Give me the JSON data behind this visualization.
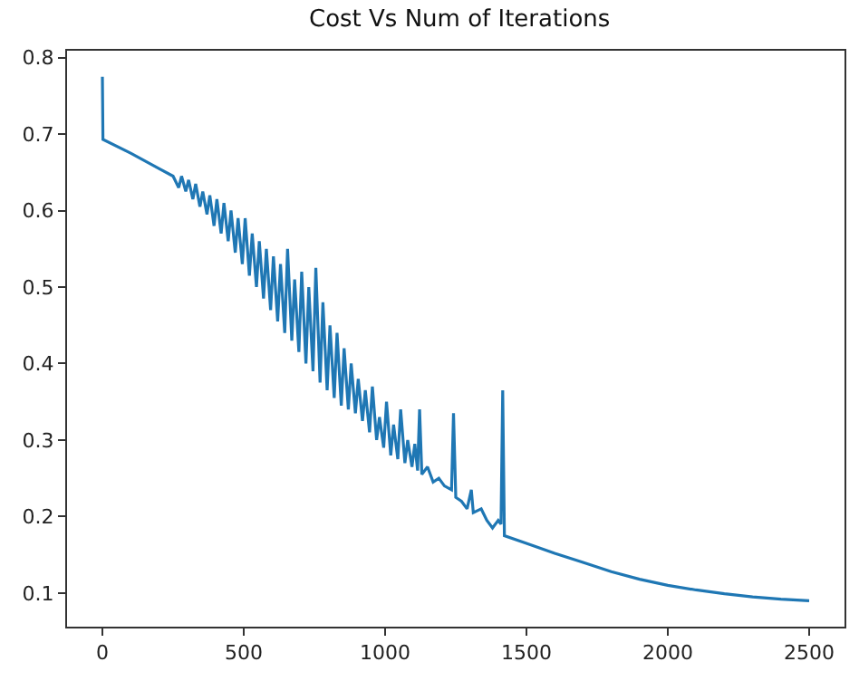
{
  "chart_data": {
    "type": "line",
    "title": "Cost Vs Num of Iterations",
    "x": [
      0,
      2,
      100,
      200,
      250,
      270,
      280,
      295,
      305,
      320,
      330,
      345,
      355,
      370,
      380,
      395,
      405,
      420,
      430,
      445,
      455,
      470,
      480,
      495,
      505,
      520,
      530,
      545,
      555,
      570,
      580,
      595,
      605,
      620,
      630,
      645,
      655,
      670,
      680,
      695,
      705,
      720,
      730,
      745,
      755,
      770,
      780,
      795,
      805,
      820,
      830,
      845,
      855,
      870,
      880,
      895,
      905,
      920,
      930,
      945,
      955,
      970,
      980,
      995,
      1005,
      1020,
      1030,
      1045,
      1055,
      1070,
      1080,
      1095,
      1105,
      1115,
      1122,
      1130,
      1150,
      1170,
      1190,
      1210,
      1235,
      1242,
      1250,
      1270,
      1290,
      1305,
      1312,
      1340,
      1360,
      1380,
      1400,
      1410,
      1416,
      1422,
      1500,
      1600,
      1700,
      1800,
      1900,
      2000,
      2100,
      2200,
      2300,
      2400,
      2500
    ],
    "series": [
      {
        "color": "#1f77b4",
        "values": [
          0.775,
          0.693,
          0.675,
          0.655,
          0.645,
          0.63,
          0.645,
          0.625,
          0.64,
          0.615,
          0.635,
          0.605,
          0.625,
          0.595,
          0.62,
          0.58,
          0.615,
          0.57,
          0.61,
          0.56,
          0.6,
          0.545,
          0.59,
          0.53,
          0.59,
          0.515,
          0.57,
          0.5,
          0.56,
          0.485,
          0.55,
          0.47,
          0.54,
          0.455,
          0.53,
          0.44,
          0.55,
          0.43,
          0.51,
          0.415,
          0.52,
          0.4,
          0.5,
          0.39,
          0.525,
          0.375,
          0.48,
          0.365,
          0.45,
          0.355,
          0.44,
          0.345,
          0.42,
          0.34,
          0.4,
          0.335,
          0.38,
          0.325,
          0.365,
          0.31,
          0.37,
          0.3,
          0.33,
          0.29,
          0.35,
          0.28,
          0.32,
          0.275,
          0.34,
          0.27,
          0.3,
          0.265,
          0.295,
          0.26,
          0.34,
          0.255,
          0.265,
          0.245,
          0.25,
          0.24,
          0.235,
          0.335,
          0.225,
          0.22,
          0.21,
          0.235,
          0.205,
          0.21,
          0.195,
          0.185,
          0.195,
          0.19,
          0.365,
          0.175,
          0.165,
          0.152,
          0.14,
          0.128,
          0.118,
          0.11,
          0.104,
          0.099,
          0.095,
          0.092,
          0.09
        ]
      }
    ],
    "xlim": [
      -125,
      2625
    ],
    "xticks": [
      0,
      500,
      1000,
      1500,
      2000,
      2500
    ],
    "ylim": [
      0.056,
      0.809
    ],
    "yticks": [
      0.1,
      0.2,
      0.3,
      0.4,
      0.5,
      0.6,
      0.7,
      0.8
    ],
    "line_style": "solid"
  }
}
